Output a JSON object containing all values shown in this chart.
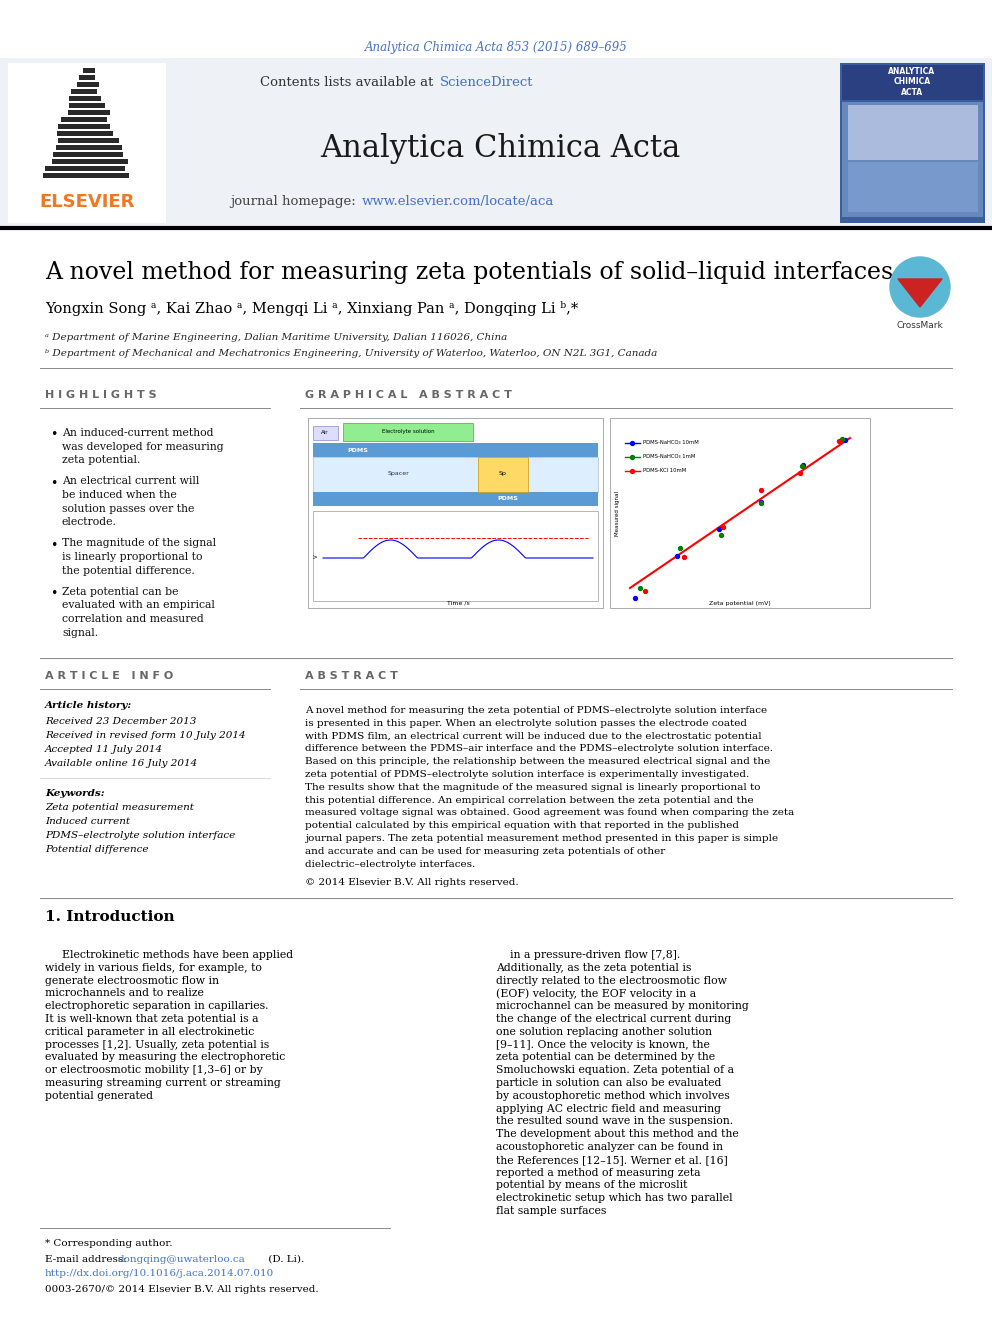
{
  "journal_ref": "Analytica Chimica Acta 853 (2015) 689–695",
  "journal_name": "Analytica Chimica Acta",
  "contents_text": "Contents lists available at ",
  "sciencedirect": "ScienceDirect",
  "homepage_text": "journal homepage: ",
  "homepage_url": "www.elsevier.com/locate/aca",
  "title": "A novel method for measuring zeta potentials of solid–liquid interfaces",
  "authors_line": "Yongxin Song ᵃ, Kai Zhao ᵃ, Mengqi Li ᵃ, Xinxiang Pan ᵃ, Dongqing Li ᵇ,*",
  "affil_a": "ᵃ Department of Marine Engineering, Dalian Maritime University, Dalian 116026, China",
  "affil_b": "ᵇ Department of Mechanical and Mechatronics Engineering, University of Waterloo, Waterloo, ON N2L 3G1, Canada",
  "highlights_title": "H I G H L I G H T S",
  "highlights": [
    "An induced-current method was developed for measuring zeta potential.",
    "An electrical current will be induced when the solution passes over the electrode.",
    "The magnitude of the signal is linearly proportional to the potential difference.",
    "Zeta potential can be evaluated with an empirical correlation and measured signal."
  ],
  "graphical_abstract_title": "G R A P H I C A L   A B S T R A C T",
  "article_info_title": "A R T I C L E   I N F O",
  "article_history": "Article history:",
  "received": "Received 23 December 2013",
  "revised": "Received in revised form 10 July 2014",
  "accepted": "Accepted 11 July 2014",
  "online": "Available online 16 July 2014",
  "keywords_title": "Keywords:",
  "keywords": [
    "Zeta potential measurement",
    "Induced current",
    "PDMS–electrolyte solution interface",
    "Potential difference"
  ],
  "abstract_title": "A B S T R A C T",
  "abstract_text": "A novel method for measuring the zeta potential of PDMS–electrolyte solution interface is presented in this paper. When an electrolyte solution passes the electrode coated with PDMS film, an electrical current will be induced due to the electrostatic potential difference between the PDMS–air interface and the PDMS–electrolyte solution interface. Based on this principle, the relationship between the measured electrical signal and the zeta potential of PDMS–electrolyte solution interface is experimentally investigated. The results show that the magnitude of the measured signal is linearly proportional to this potential difference. An empirical correlation between the zeta potential and the measured voltage signal was obtained. Good agreement was found when comparing the zeta potential calculated by this empirical equation with that reported in the published journal papers. The zeta potential measurement method presented in this paper is simple and accurate and can be used for measuring zeta potentials of other dielectric–electrolyte interfaces.",
  "copyright": "© 2014 Elsevier B.V. All rights reserved.",
  "section1_title": "1. Introduction",
  "intro_text1": "Electrokinetic methods have been applied widely in various fields, for example, to generate electroosmotic flow in microchannels and to realize electrophoretic separation in capillaries. It is well-known that zeta potential is a critical parameter in all electrokinetic processes [1,2]. Usually, zeta potential is evaluated by measuring the electrophoretic or electroosmotic mobility [1,3–6] or by measuring streaming current or streaming potential generated",
  "intro_text2": "in a pressure-driven flow [7,8]. Additionally, as the zeta potential is directly related to the electroosmotic flow (EOF) velocity, the EOF velocity in a microchannel can be measured by monitoring the change of the electrical current during one solution replacing another solution [9–11]. Once the velocity is known, the zeta potential can be determined by the Smoluchowski equation. Zeta potential of a particle in solution can also be evaluated by acoustophoretic method which involves applying AC electric field and measuring the resulted sound wave in the suspension. The development about this method and the acoustophoretic analyzer can be found in the References [12–15]. Werner et al. [16] reported a method of measuring zeta potential by means of the microslit electrokinetic setup which has two parallel flat sample surfaces",
  "footnote_star": "* Corresponding author.",
  "footnote_email_prefix": "E-mail address: ",
  "footnote_email_addr": "dongqing@uwaterloo.ca",
  "footnote_email_suffix": " (D. Li).",
  "footnote_doi": "http://dx.doi.org/10.1016/j.aca.2014.07.010",
  "footnote_issn": "0003-2670/© 2014 Elsevier B.V. All rights reserved.",
  "header_bg": "#eef1f6",
  "blue_link": "#4472c4",
  "elsevier_orange": "#f07820",
  "dark_gray": "#333333"
}
